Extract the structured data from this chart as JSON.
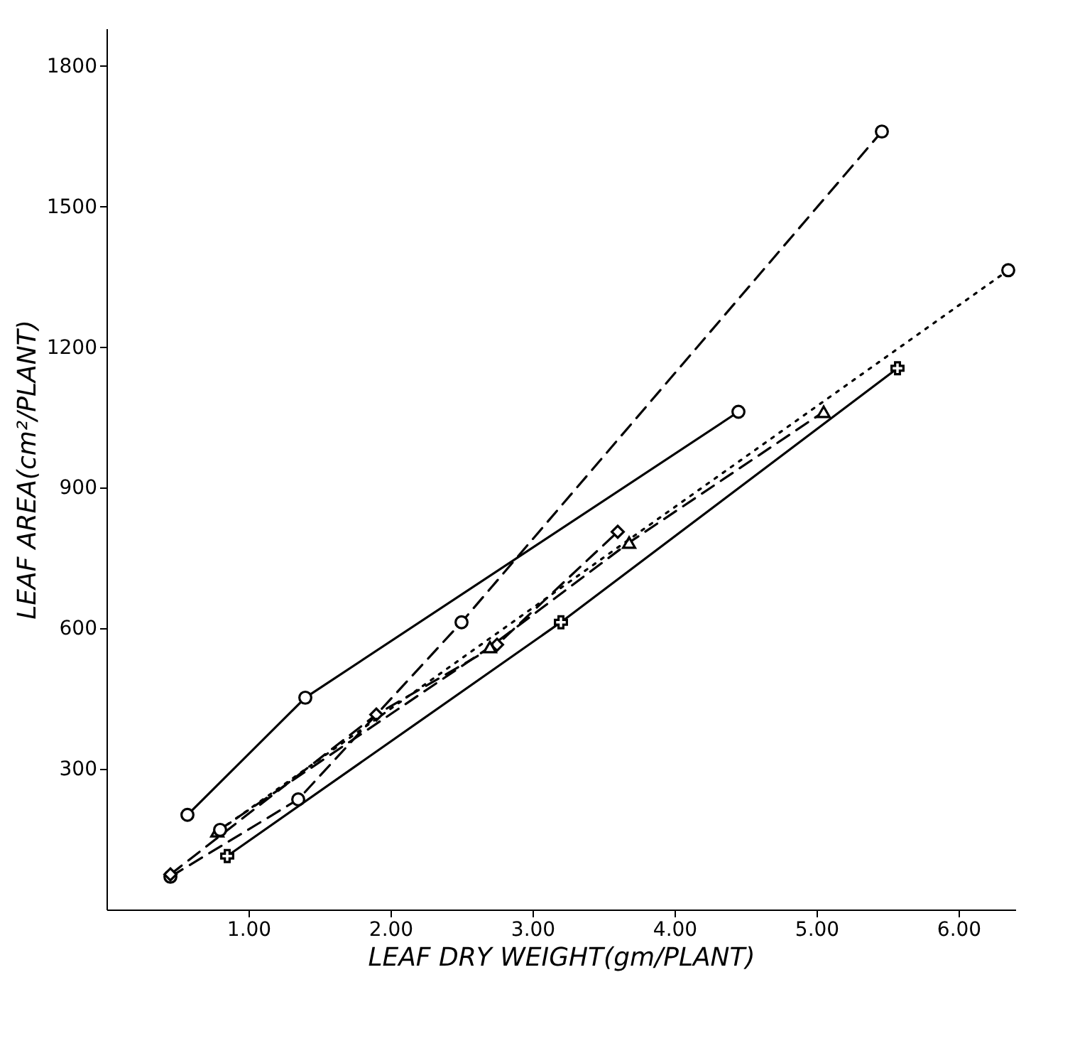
{
  "chart_data": {
    "type": "line",
    "xlabel": "LEAF DRY WEIGHT(gm/PLANT)",
    "ylabel": "LEAF AREA(cm²/PLANT)",
    "xlim": [
      0,
      6.4
    ],
    "ylim": [
      0,
      1880
    ],
    "xticks": [
      {
        "value": 1,
        "label": "1.00"
      },
      {
        "value": 2,
        "label": "2.00"
      },
      {
        "value": 3,
        "label": "3.00"
      },
      {
        "value": 4,
        "label": "4.00"
      },
      {
        "value": 5,
        "label": "5.00"
      },
      {
        "value": 6,
        "label": "6.00"
      }
    ],
    "yticks": [
      300,
      600,
      900,
      1200,
      1500,
      1800
    ],
    "grid": false,
    "series": [
      {
        "color": "#000000",
        "marker": "circle",
        "line_style": "solid",
        "x": [
          0.57,
          1.4,
          4.45
        ],
        "values": [
          202,
          452,
          1062
        ]
      },
      {
        "color": "#000000",
        "marker": "circle",
        "line_style": "dashed",
        "x": [
          0.45,
          1.35,
          2.5,
          5.46
        ],
        "values": [
          70,
          235,
          613,
          1660
        ]
      },
      {
        "color": "#000000",
        "marker": "diamond",
        "line_style": "dashed",
        "x": [
          0.45,
          1.9,
          2.75,
          3.6
        ],
        "values": [
          75,
          416,
          565,
          806
        ]
      },
      {
        "color": "#000000",
        "marker": "triangle",
        "line_style": "dashed",
        "x": [
          0.78,
          2.7,
          3.68,
          5.05
        ],
        "values": [
          167,
          560,
          783,
          1062
        ]
      },
      {
        "color": "#000000",
        "marker": "circle",
        "line_style": "dotted",
        "x": [
          0.8,
          6.35
        ],
        "values": [
          170,
          1364
        ]
      },
      {
        "color": "#000000",
        "marker": "cross",
        "line_style": "solid",
        "x": [
          0.85,
          3.2,
          5.57
        ],
        "values": [
          114,
          613,
          1155
        ]
      }
    ]
  }
}
